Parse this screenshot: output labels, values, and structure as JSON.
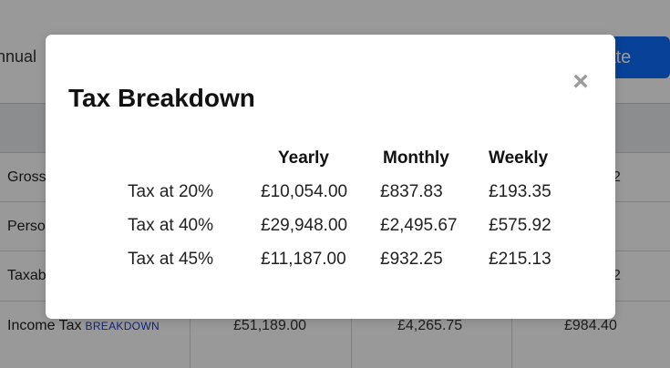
{
  "background": {
    "salary_label": "nnual",
    "calc_button_label": "late",
    "rows": [
      {
        "label": "Gross",
        "values": [
          "",
          "",
          "2"
        ]
      },
      {
        "label": "Perso",
        "values": [
          "",
          "",
          ""
        ]
      },
      {
        "label": "Taxab",
        "values": [
          "",
          "",
          "2"
        ]
      },
      {
        "label": "Income Tax",
        "link": "BREAKDOWN",
        "values": [
          "£51,189.00",
          "£4,265.75",
          "£984.40"
        ]
      }
    ]
  },
  "modal": {
    "title": "Tax Breakdown",
    "close_symbol": "×",
    "columns": [
      "Yearly",
      "Monthly",
      "Weekly"
    ],
    "rows": [
      {
        "label": "Tax at 20%",
        "yearly": "£10,054.00",
        "monthly": "£837.83",
        "weekly": "£193.35"
      },
      {
        "label": "Tax at 40%",
        "yearly": "£29,948.00",
        "monthly": "£2,495.67",
        "weekly": "£575.92"
      },
      {
        "label": "Tax at 45%",
        "yearly": "£11,187.00",
        "monthly": "£932.25",
        "weekly": "£215.13"
      }
    ]
  },
  "colors": {
    "overlay": "#000000",
    "button": "#0d6efd",
    "link": "#1a3cc8"
  }
}
